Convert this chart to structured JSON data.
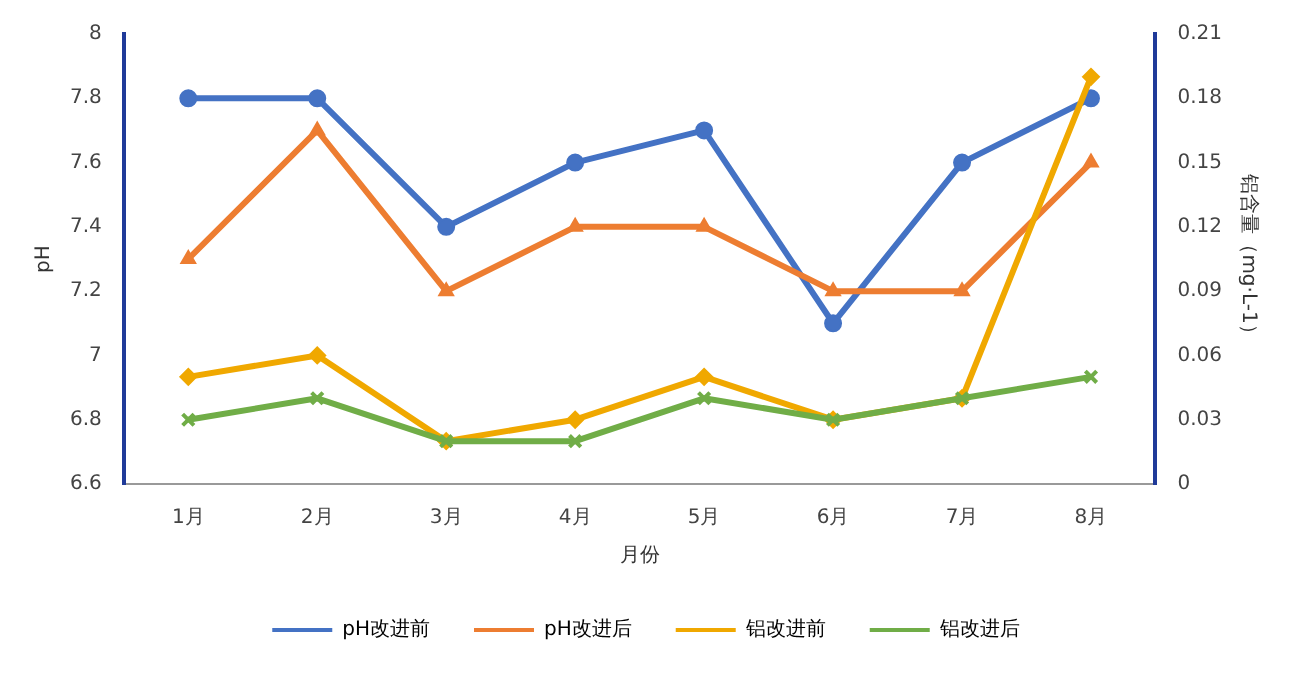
{
  "chart_data": {
    "type": "line",
    "xlabel": "月份",
    "ylabel": "pH",
    "y2label": "铝含量（mg·L-1）",
    "categories": [
      "1月",
      "2月",
      "3月",
      "4月",
      "5月",
      "6月",
      "7月",
      "8月"
    ],
    "ylim": [
      6.6,
      8
    ],
    "yticks": [
      6.6,
      6.8,
      7,
      7.2,
      7.4,
      7.6,
      7.8,
      8
    ],
    "y2lim": [
      0,
      0.21
    ],
    "y2ticks": [
      0,
      0.03,
      0.06,
      0.09,
      0.12,
      0.15,
      0.18,
      0.21
    ],
    "grid": false,
    "legend": "bottom",
    "line_style": "solid",
    "series": [
      {
        "name": "pH改进前",
        "color": "#4472c4",
        "marker": "circle",
        "values": [
          7.8,
          7.8,
          7.4,
          7.6,
          7.7,
          7.1,
          7.6,
          7.8
        ]
      },
      {
        "name": "pH改进后",
        "color": "#ed7d31",
        "marker": "triangle",
        "values": [
          7.3,
          7.7,
          7.2,
          7.4,
          7.4,
          7.2,
          7.2,
          7.6
        ]
      },
      {
        "name": "铝改进前",
        "color": "#f0a800",
        "marker": "diamond",
        "axis": "y2",
        "values": [
          0.05,
          0.06,
          0.02,
          0.03,
          0.05,
          0.03,
          0.04,
          0.19
        ]
      },
      {
        "name": "铝改进后",
        "color": "#70ad47",
        "marker": "cross",
        "axis": "y2",
        "values": [
          0.03,
          0.04,
          0.02,
          0.02,
          0.04,
          0.03,
          0.04,
          0.05
        ]
      }
    ]
  }
}
